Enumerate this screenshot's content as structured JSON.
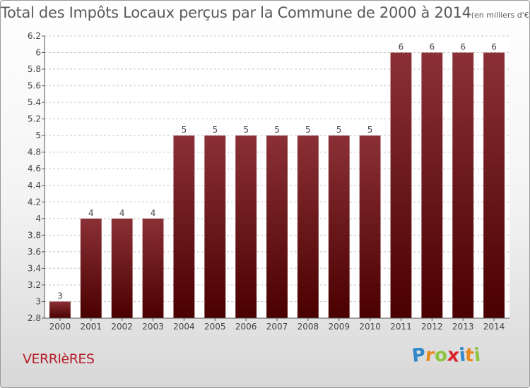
{
  "title": "Total des Impôts Locaux perçus par la Commune de 2000 à 2014",
  "subtitle": "(en milliers d'€)",
  "commune": "VERRIèRES",
  "brand": {
    "letters": [
      "P",
      "r",
      "o",
      "x",
      "i",
      "t",
      "i"
    ],
    "colors": [
      "#2f86c9",
      "#e8891d",
      "#8cc43f",
      "#d9232d",
      "#2f86c9",
      "#e8891d",
      "#8cc43f"
    ]
  },
  "colors": {
    "bar_top": "#8a3036",
    "bar_bottom": "#4a0000",
    "axis": "#555555",
    "grid": "#c8c8c8"
  },
  "chart_data": {
    "type": "bar",
    "title": "Total des Impôts Locaux perçus par la Commune de 2000 à 2014",
    "subtitle": "(en milliers d'€)",
    "categories": [
      "2000",
      "2001",
      "2002",
      "2003",
      "2004",
      "2005",
      "2006",
      "2007",
      "2008",
      "2009",
      "2010",
      "2011",
      "2012",
      "2013",
      "2014"
    ],
    "values": [
      3,
      4,
      4,
      4,
      5,
      5,
      5,
      5,
      5,
      5,
      5,
      6,
      6,
      6,
      6
    ],
    "data_labels": [
      "3",
      "4",
      "4",
      "4",
      "5",
      "5",
      "5",
      "5",
      "5",
      "5",
      "5",
      "6",
      "6",
      "6",
      "6"
    ],
    "yticks": [
      2.8,
      3,
      3.2,
      3.4,
      3.6,
      3.8,
      4,
      4.2,
      4.4,
      4.6,
      4.8,
      5,
      5.2,
      5.4,
      5.6,
      5.8,
      6,
      6.2
    ],
    "ytick_labels": [
      "2.8",
      "3",
      "3.2",
      "3.4",
      "3.6",
      "3.8",
      "4",
      "4.2",
      "4.4",
      "4.6",
      "4.8",
      "5",
      "5.2",
      "5.4",
      "5.6",
      "5.8",
      "6",
      "6.2"
    ],
    "ylim": [
      2.8,
      6.2
    ],
    "xlabel": "",
    "ylabel": "",
    "grid": "horizontal dashed"
  }
}
